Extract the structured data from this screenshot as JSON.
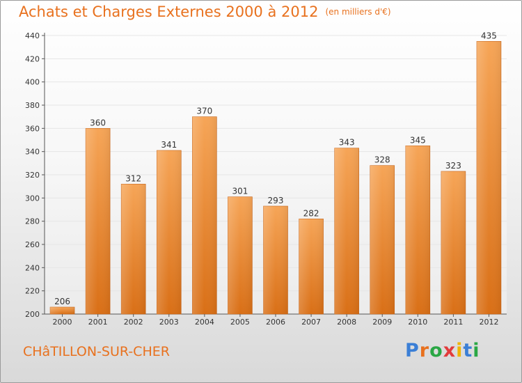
{
  "title": {
    "main": "Achats et Charges Externes 2000 à 2012",
    "unit": "(en milliers d'€)"
  },
  "city": "CHâTILLON-SUR-CHER",
  "logo": {
    "letters": [
      "P",
      "r",
      "o",
      "x",
      "i",
      "t",
      "i"
    ],
    "colors": [
      "#3b7fd6",
      "#e8711e",
      "#2aa745",
      "#e23b3b",
      "#f0b400",
      "#3b7fd6",
      "#2aa745"
    ]
  },
  "colors": {
    "bar_top": "#f6a557",
    "bar_bottom": "#d96f16",
    "text": "#333333",
    "accent": "#e8711e",
    "grid": "#e6e6e6"
  },
  "chart_data": {
    "type": "bar",
    "categories": [
      "2000",
      "2001",
      "2002",
      "2003",
      "2004",
      "2005",
      "2006",
      "2007",
      "2008",
      "2009",
      "2010",
      "2011",
      "2012"
    ],
    "values": [
      206,
      360,
      312,
      341,
      370,
      301,
      293,
      282,
      343,
      328,
      345,
      323,
      435
    ],
    "ylim": [
      200,
      440
    ],
    "yticks": [
      200,
      220,
      240,
      260,
      280,
      300,
      320,
      340,
      360,
      380,
      400,
      420,
      440
    ],
    "grid": true,
    "data_labels": true
  }
}
